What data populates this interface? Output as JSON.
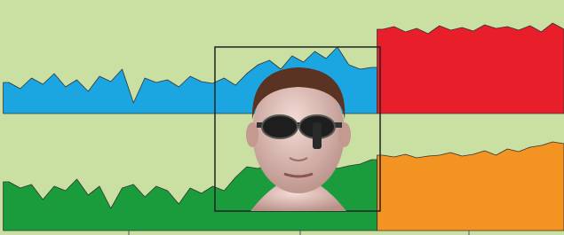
{
  "chart_data": [
    {
      "type": "area",
      "ylim": [
        0,
        120
      ],
      "series": [
        {
          "color": "#1ba6e2",
          "values": [
            35,
            28,
            40,
            33,
            45,
            30,
            38,
            25,
            42,
            36,
            50,
            12,
            40,
            35,
            38,
            30,
            42,
            36,
            34,
            40,
            32,
            45,
            55,
            60,
            50,
            65,
            58,
            70,
            62,
            75,
            55,
            50,
            52,
            null,
            null,
            null,
            null,
            null,
            null,
            null,
            null,
            null,
            null,
            null,
            null,
            null,
            null,
            null,
            null,
            null
          ]
        },
        {
          "color": "#e81f2b",
          "values": [
            null,
            null,
            null,
            null,
            null,
            null,
            null,
            null,
            null,
            null,
            null,
            null,
            null,
            null,
            null,
            null,
            null,
            null,
            null,
            null,
            null,
            null,
            null,
            null,
            null,
            null,
            null,
            null,
            null,
            null,
            null,
            null,
            null,
            95,
            98,
            92,
            96,
            90,
            99,
            94,
            97,
            93,
            100,
            96,
            98,
            94,
            99,
            92,
            102,
            95
          ]
        }
      ]
    },
    {
      "type": "area",
      "ylim": [
        0,
        120
      ],
      "series": [
        {
          "color": "#1a9b3c",
          "values": [
            55,
            48,
            52,
            35,
            50,
            45,
            58,
            40,
            50,
            25,
            48,
            52,
            38,
            50,
            45,
            30,
            48,
            42,
            50,
            45,
            60,
            72,
            70,
            75,
            68,
            78,
            72,
            74,
            76,
            70,
            73,
            75,
            80,
            null,
            null,
            null,
            null,
            null,
            null,
            null,
            null,
            null,
            null,
            null,
            null,
            null,
            null,
            null,
            null,
            null
          ]
        },
        {
          "color": "#f39322",
          "values": [
            null,
            null,
            null,
            null,
            null,
            null,
            null,
            null,
            null,
            null,
            null,
            null,
            null,
            null,
            null,
            null,
            null,
            null,
            null,
            null,
            null,
            null,
            null,
            null,
            null,
            null,
            null,
            null,
            null,
            null,
            null,
            null,
            null,
            85,
            83,
            86,
            82,
            84,
            85,
            88,
            84,
            86,
            90,
            85,
            92,
            89,
            94,
            96,
            100,
            98
          ]
        }
      ]
    }
  ]
}
